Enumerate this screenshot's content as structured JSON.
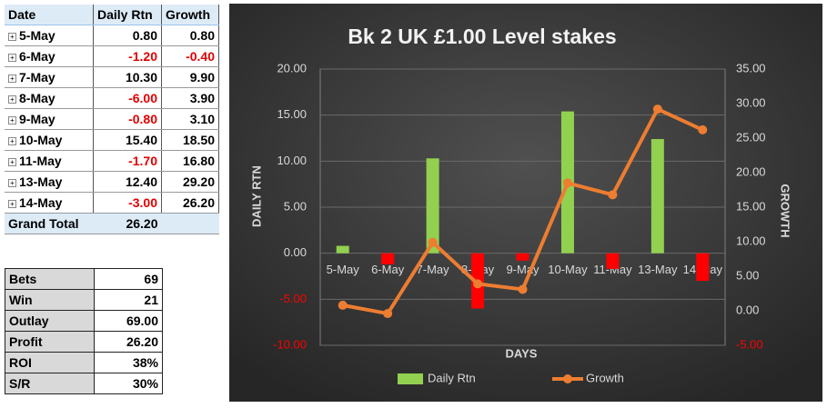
{
  "pivot": {
    "headers": [
      "Date",
      "Daily Rtn",
      "Growth"
    ],
    "rows": [
      [
        "5-May",
        "0.80",
        "0.80"
      ],
      [
        "6-May",
        "-1.20",
        "-0.40"
      ],
      [
        "7-May",
        "10.30",
        "9.90"
      ],
      [
        "8-May",
        "-6.00",
        "3.90"
      ],
      [
        "9-May",
        "-0.80",
        "3.10"
      ],
      [
        "10-May",
        "15.40",
        "18.50"
      ],
      [
        "11-May",
        "-1.70",
        "16.80"
      ],
      [
        "13-May",
        "12.40",
        "29.20"
      ],
      [
        "14-May",
        "-3.00",
        "26.20"
      ]
    ],
    "total": [
      "Grand Total",
      "26.20"
    ]
  },
  "summary": {
    "rows": [
      [
        "Bets",
        "69"
      ],
      [
        "Win",
        "21"
      ],
      [
        "Outlay",
        "69.00"
      ],
      [
        "Profit",
        "26.20"
      ],
      [
        "ROI",
        "38%"
      ],
      [
        "S/R",
        "30%"
      ]
    ]
  },
  "chart_data": {
    "type": "combo",
    "title": "Bk 2 UK £1.00 Level stakes",
    "x_label": "DAYS",
    "y_label": "DAILY RTN",
    "y2_label": "GROWTH",
    "categories": [
      "5-May",
      "6-May",
      "7-May",
      "8-May",
      "9-May",
      "10-May",
      "11-May",
      "13-May",
      "14-May"
    ],
    "series": [
      {
        "name": "Daily Rtn",
        "type": "bar",
        "color": "#92d050",
        "negative_color": "#ff0000",
        "values": [
          0.8,
          -1.2,
          10.3,
          -6.0,
          -0.8,
          15.4,
          -1.7,
          12.4,
          -3.0
        ]
      },
      {
        "name": "Growth",
        "type": "line",
        "axis": "y2",
        "color": "#ed7d31",
        "values": [
          0.8,
          -0.4,
          9.9,
          3.9,
          3.1,
          18.5,
          16.8,
          29.2,
          26.2
        ]
      }
    ],
    "ylim": [
      -10,
      20
    ],
    "yticks": [
      {
        "value": -10,
        "label": "-10.00"
      },
      {
        "value": -5,
        "label": "-5.00"
      },
      {
        "value": 0,
        "label": "0.00"
      },
      {
        "value": 5,
        "label": "5.00"
      },
      {
        "value": 10,
        "label": "10.00"
      },
      {
        "value": 15,
        "label": "15.00"
      },
      {
        "value": 20,
        "label": "20.00"
      }
    ],
    "y2lim": [
      -5,
      35
    ],
    "y2ticks": [
      {
        "value": -5,
        "label": "-5.00"
      },
      {
        "value": 0,
        "label": "0.00"
      },
      {
        "value": 5,
        "label": "5.00"
      },
      {
        "value": 10,
        "label": "10.00"
      },
      {
        "value": 15,
        "label": "15.00"
      },
      {
        "value": 20,
        "label": "20.00"
      },
      {
        "value": 25,
        "label": "25.00"
      },
      {
        "value": 30,
        "label": "30.00"
      },
      {
        "value": 35,
        "label": "35.00"
      }
    ],
    "grid": true,
    "legend": "bottom"
  }
}
